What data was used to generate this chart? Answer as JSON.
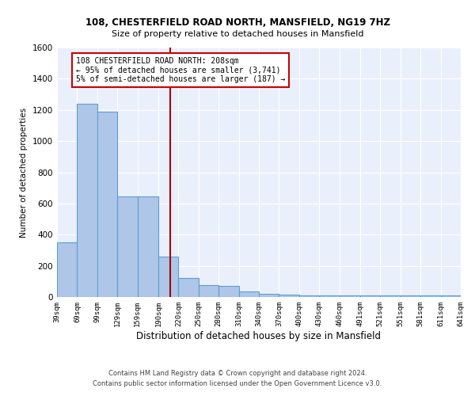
{
  "title1": "108, CHESTERFIELD ROAD NORTH, MANSFIELD, NG19 7HZ",
  "title2": "Size of property relative to detached houses in Mansfield",
  "xlabel": "Distribution of detached houses by size in Mansfield",
  "ylabel": "Number of detached properties",
  "footer1": "Contains HM Land Registry data © Crown copyright and database right 2024.",
  "footer2": "Contains public sector information licensed under the Open Government Licence v3.0.",
  "bin_edges": [
    39,
    69,
    99,
    129,
    159,
    190,
    220,
    250,
    280,
    310,
    340,
    370,
    400,
    430,
    460,
    491,
    521,
    551,
    581,
    611,
    641
  ],
  "bar_heights": [
    350,
    1240,
    1190,
    645,
    645,
    260,
    120,
    75,
    70,
    35,
    20,
    15,
    10,
    10,
    10,
    10,
    10,
    10,
    10,
    10
  ],
  "bar_color": "#aec6e8",
  "bar_edge_color": "#5a9fd4",
  "property_size": 208,
  "vline_color": "#aa0000",
  "annotation_text": "108 CHESTERFIELD ROAD NORTH: 208sqm\n← 95% of detached houses are smaller (3,741)\n5% of semi-detached houses are larger (187) →",
  "annotation_box_color": "#cc0000",
  "annotation_bg": "#ffffff",
  "ylim_max": 1600,
  "yticks": [
    0,
    200,
    400,
    600,
    800,
    1000,
    1200,
    1400,
    1600
  ],
  "bg_color": "#eaf0fb",
  "grid_color": "#ffffff"
}
